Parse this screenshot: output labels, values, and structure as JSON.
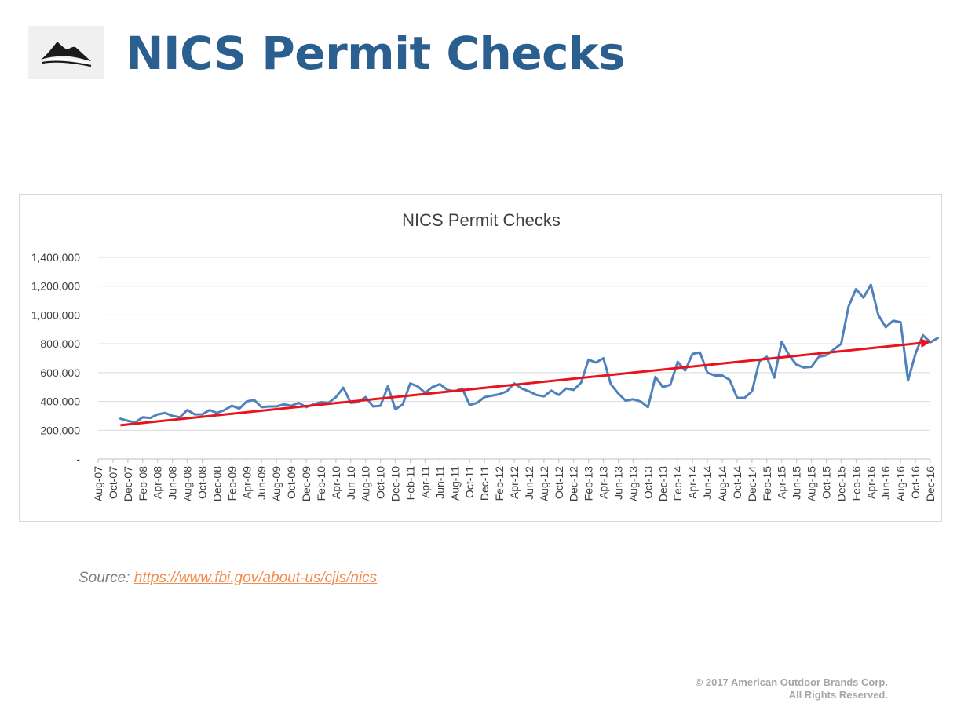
{
  "slide": {
    "title": "NICS Permit Checks",
    "title_color": "#2a5f8f"
  },
  "logo": {
    "icon": "mountain-logo-icon"
  },
  "chart_data": {
    "type": "line",
    "title": "NICS Permit Checks",
    "ylim": [
      0,
      1400000
    ],
    "y_ticks": [
      0,
      200000,
      400000,
      600000,
      800000,
      1000000,
      1200000,
      1400000
    ],
    "y_tick_labels": [
      "-",
      "200,000",
      "400,000",
      "600,000",
      "800,000",
      "1,000,000",
      "1,200,000",
      "1,400,000"
    ],
    "x_tick_labels": [
      "Aug-07",
      "Oct-07",
      "Dec-07",
      "Feb-08",
      "Apr-08",
      "Jun-08",
      "Aug-08",
      "Oct-08",
      "Dec-08",
      "Feb-09",
      "Apr-09",
      "Jun-09",
      "Aug-09",
      "Oct-09",
      "Dec-09",
      "Feb-10",
      "Apr-10",
      "Jun-10",
      "Aug-10",
      "Oct-10",
      "Dec-10",
      "Feb-11",
      "Apr-11",
      "Jun-11",
      "Aug-11",
      "Oct-11",
      "Dec-11",
      "Feb-12",
      "Apr-12",
      "Jun-12",
      "Aug-12",
      "Oct-12",
      "Dec-12",
      "Feb-13",
      "Apr-13",
      "Jun-13",
      "Aug-13",
      "Oct-13",
      "Dec-13",
      "Feb-14",
      "Apr-14",
      "Jun-14",
      "Aug-14",
      "Oct-14",
      "Dec-14",
      "Feb-15",
      "Apr-15",
      "Jun-15",
      "Aug-15",
      "Oct-15",
      "Dec-15",
      "Feb-16",
      "Apr-16",
      "Jun-16",
      "Aug-16",
      "Oct-16",
      "Dec-16"
    ],
    "grid": true,
    "legend": "none",
    "series": [
      {
        "color": "#4f81bd",
        "start": "Nov-07",
        "values": [
          280000,
          265000,
          255000,
          290000,
          285000,
          310000,
          320000,
          300000,
          290000,
          340000,
          310000,
          310000,
          340000,
          320000,
          340000,
          370000,
          350000,
          400000,
          410000,
          360000,
          365000,
          365000,
          380000,
          370000,
          390000,
          360000,
          380000,
          395000,
          390000,
          430000,
          495000,
          390000,
          395000,
          430000,
          365000,
          370000,
          505000,
          345000,
          380000,
          525000,
          505000,
          460000,
          500000,
          520000,
          480000,
          470000,
          490000,
          375000,
          390000,
          430000,
          440000,
          450000,
          470000,
          525000,
          490000,
          470000,
          445000,
          435000,
          475000,
          445000,
          490000,
          480000,
          530000,
          690000,
          670000,
          700000,
          520000,
          455000,
          405000,
          415000,
          400000,
          360000,
          570000,
          500000,
          515000,
          675000,
          615000,
          730000,
          740000,
          600000,
          580000,
          580000,
          550000,
          425000,
          425000,
          470000,
          680000,
          710000,
          565000,
          815000,
          720000,
          655000,
          635000,
          640000,
          710000,
          720000,
          760000,
          800000,
          1060000,
          1180000,
          1120000,
          1210000,
          1000000,
          915000,
          960000,
          950000,
          545000,
          730000,
          860000,
          810000,
          840000
        ]
      },
      {
        "type": "trendline",
        "color": "#e8141d",
        "start": "Nov-07",
        "end": "Dec-16",
        "y_start": 235000,
        "y_end": 812000
      }
    ]
  },
  "source": {
    "label": "Source:",
    "url": "https://www.fbi.gov/about-us/cjis/nics"
  },
  "copyright": {
    "line1": "© 2017 American Outdoor Brands Corp.",
    "line2": "All Rights Reserved."
  }
}
